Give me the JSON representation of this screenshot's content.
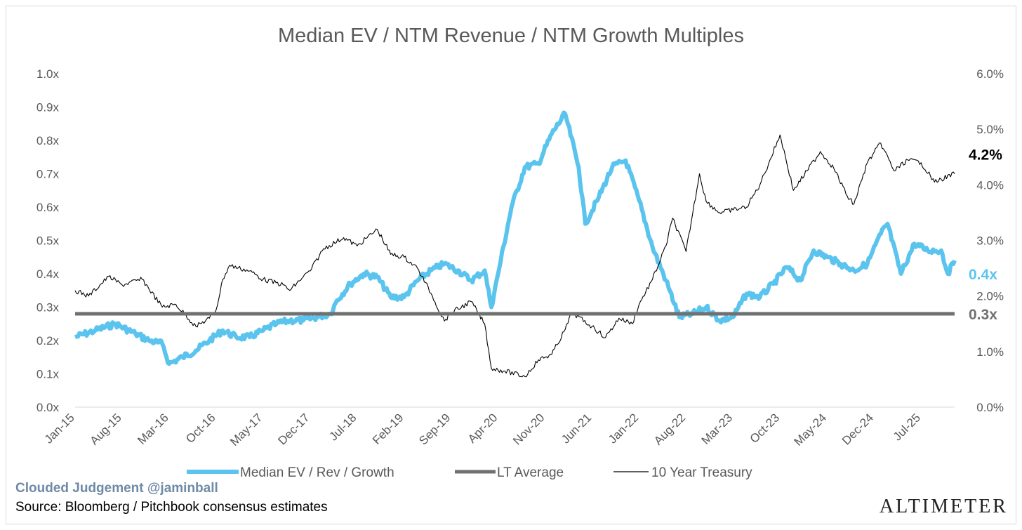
{
  "chart_data": {
    "type": "line",
    "title": "Median EV / NTM Revenue / NTM Growth Multiples",
    "x_labels": [
      "Jan-15",
      "Aug-15",
      "Mar-16",
      "Oct-16",
      "May-17",
      "Dec-17",
      "Jul-18",
      "Feb-19",
      "Sep-19",
      "Apr-20",
      "Nov-20",
      "Jun-21",
      "Jan-22",
      "Aug-22",
      "Mar-23",
      "Oct-23",
      "May-24",
      "Dec-24",
      "Jul-25"
    ],
    "x_range": [
      "Jan-15",
      "Dec-25"
    ],
    "left_axis": {
      "ticks": [
        "0.0x",
        "0.1x",
        "0.2x",
        "0.3x",
        "0.4x",
        "0.5x",
        "0.6x",
        "0.7x",
        "0.8x",
        "0.9x",
        "1.0x"
      ],
      "ylim": [
        0,
        1.0
      ]
    },
    "right_axis": {
      "ticks": [
        "0.0%",
        "1.0%",
        "2.0%",
        "3.0%",
        "4.0%",
        "5.0%",
        "6.0%"
      ],
      "ylim": [
        0,
        6.0
      ]
    },
    "series": [
      {
        "name": "Median EV / Rev / Growth",
        "axis": "left",
        "color": "#5bc4ee",
        "points": [
          [
            "Jan-15",
            0.21
          ],
          [
            "Apr-15",
            0.23
          ],
          [
            "Jul-15",
            0.25
          ],
          [
            "Oct-15",
            0.22
          ],
          [
            "Dec-15",
            0.2
          ],
          [
            "Feb-16",
            0.19
          ],
          [
            "Mar-16",
            0.13
          ],
          [
            "May-16",
            0.15
          ],
          [
            "Jul-16",
            0.17
          ],
          [
            "Sep-16",
            0.2
          ],
          [
            "Nov-16",
            0.23
          ],
          [
            "Jan-17",
            0.21
          ],
          [
            "Mar-17",
            0.21
          ],
          [
            "May-17",
            0.23
          ],
          [
            "Jul-17",
            0.25
          ],
          [
            "Sep-17",
            0.26
          ],
          [
            "Nov-17",
            0.26
          ],
          [
            "Jan-18",
            0.27
          ],
          [
            "Mar-18",
            0.28
          ],
          [
            "Apr-18",
            0.32
          ],
          [
            "Jun-18",
            0.37
          ],
          [
            "Aug-18",
            0.4
          ],
          [
            "Oct-18",
            0.39
          ],
          [
            "Dec-18",
            0.33
          ],
          [
            "Feb-19",
            0.33
          ],
          [
            "Apr-19",
            0.38
          ],
          [
            "Jun-19",
            0.41
          ],
          [
            "Aug-19",
            0.43
          ],
          [
            "Oct-19",
            0.41
          ],
          [
            "Dec-19",
            0.38
          ],
          [
            "Feb-20",
            0.41
          ],
          [
            "Mar-20",
            0.3
          ],
          [
            "Apr-20",
            0.4
          ],
          [
            "Jun-20",
            0.6
          ],
          [
            "Aug-20",
            0.72
          ],
          [
            "Oct-20",
            0.73
          ],
          [
            "Dec-20",
            0.82
          ],
          [
            "Feb-21",
            0.88
          ],
          [
            "Apr-21",
            0.72
          ],
          [
            "May-21",
            0.55
          ],
          [
            "Jul-21",
            0.63
          ],
          [
            "Sep-21",
            0.72
          ],
          [
            "Nov-21",
            0.74
          ],
          [
            "Jan-22",
            0.62
          ],
          [
            "Mar-22",
            0.48
          ],
          [
            "May-22",
            0.38
          ],
          [
            "Jul-22",
            0.27
          ],
          [
            "Sep-22",
            0.28
          ],
          [
            "Nov-22",
            0.3
          ],
          [
            "Jan-23",
            0.26
          ],
          [
            "Mar-23",
            0.27
          ],
          [
            "May-23",
            0.34
          ],
          [
            "Jul-23",
            0.33
          ],
          [
            "Sep-23",
            0.37
          ],
          [
            "Nov-23",
            0.42
          ],
          [
            "Jan-24",
            0.38
          ],
          [
            "Mar-24",
            0.47
          ],
          [
            "May-24",
            0.45
          ],
          [
            "Jul-24",
            0.43
          ],
          [
            "Sep-24",
            0.41
          ],
          [
            "Nov-24",
            0.43
          ],
          [
            "Jan-25",
            0.52
          ],
          [
            "Feb-25",
            0.55
          ],
          [
            "Apr-25",
            0.4
          ],
          [
            "Jun-25",
            0.49
          ],
          [
            "Aug-25",
            0.47
          ],
          [
            "Oct-25",
            0.47
          ],
          [
            "Nov-25",
            0.4
          ],
          [
            "Dec-25",
            0.44
          ]
        ]
      },
      {
        "name": "LT Average",
        "axis": "left",
        "color": "#707070",
        "points": [
          [
            "Jan-15",
            0.28
          ],
          [
            "Dec-25",
            0.28
          ]
        ]
      },
      {
        "name": "10 Year Treasury",
        "axis": "right",
        "color": "#000000",
        "points": [
          [
            "Jan-15",
            2.1
          ],
          [
            "Mar-15",
            2.0
          ],
          [
            "Jun-15",
            2.35
          ],
          [
            "Aug-15",
            2.2
          ],
          [
            "Nov-15",
            2.3
          ],
          [
            "Feb-16",
            1.8
          ],
          [
            "Apr-16",
            1.85
          ],
          [
            "Jul-16",
            1.45
          ],
          [
            "Sep-16",
            1.6
          ],
          [
            "Oct-16",
            1.75
          ],
          [
            "Nov-16",
            2.3
          ],
          [
            "Dec-16",
            2.55
          ],
          [
            "Mar-17",
            2.45
          ],
          [
            "May-17",
            2.3
          ],
          [
            "Aug-17",
            2.2
          ],
          [
            "Sep-17",
            2.1
          ],
          [
            "Nov-17",
            2.35
          ],
          [
            "Dec-17",
            2.45
          ],
          [
            "Feb-18",
            2.85
          ],
          [
            "May-18",
            3.05
          ],
          [
            "Jul-18",
            2.9
          ],
          [
            "Oct-18",
            3.2
          ],
          [
            "Dec-18",
            2.75
          ],
          [
            "Feb-19",
            2.7
          ],
          [
            "Apr-19",
            2.5
          ],
          [
            "Jun-19",
            2.05
          ],
          [
            "Aug-19",
            1.55
          ],
          [
            "Sep-19",
            1.7
          ],
          [
            "Dec-19",
            1.9
          ],
          [
            "Feb-20",
            1.5
          ],
          [
            "Mar-20",
            0.7
          ],
          [
            "May-20",
            0.65
          ],
          [
            "Aug-20",
            0.55
          ],
          [
            "Oct-20",
            0.85
          ],
          [
            "Dec-20",
            0.95
          ],
          [
            "Feb-21",
            1.4
          ],
          [
            "Mar-21",
            1.7
          ],
          [
            "Jun-21",
            1.45
          ],
          [
            "Aug-21",
            1.25
          ],
          [
            "Oct-21",
            1.6
          ],
          [
            "Dec-21",
            1.5
          ],
          [
            "Jan-22",
            1.85
          ],
          [
            "Mar-22",
            2.3
          ],
          [
            "May-22",
            2.9
          ],
          [
            "Jun-22",
            3.4
          ],
          [
            "Aug-22",
            2.8
          ],
          [
            "Oct-22",
            4.2
          ],
          [
            "Nov-22",
            3.7
          ],
          [
            "Jan-23",
            3.5
          ],
          [
            "Mar-23",
            3.55
          ],
          [
            "May-23",
            3.6
          ],
          [
            "Jul-23",
            4.0
          ],
          [
            "Oct-23",
            4.9
          ],
          [
            "Dec-23",
            3.9
          ],
          [
            "Feb-24",
            4.25
          ],
          [
            "Apr-24",
            4.6
          ],
          [
            "Jun-24",
            4.3
          ],
          [
            "Aug-24",
            3.8
          ],
          [
            "Sep-24",
            3.65
          ],
          [
            "Nov-24",
            4.4
          ],
          [
            "Jan-25",
            4.75
          ],
          [
            "Mar-25",
            4.25
          ],
          [
            "May-25",
            4.45
          ],
          [
            "Jul-25",
            4.4
          ],
          [
            "Sep-25",
            4.05
          ],
          [
            "Oct-25",
            4.1
          ],
          [
            "Dec-25",
            4.2
          ]
        ]
      }
    ],
    "end_labels": [
      {
        "text": "4.2%",
        "axis": "right",
        "value": 4.2,
        "color": "#000000"
      },
      {
        "text": "0.4x",
        "axis": "left",
        "value": 0.4,
        "color": "#5bc4ee"
      },
      {
        "text": "0.3x",
        "axis": "left",
        "value": 0.28,
        "color": "#707070"
      }
    ],
    "legend": {
      "placement": "bottom"
    },
    "grid": false
  },
  "footer": {
    "brand": "Clouded Judgement @jaminball",
    "source": "Source: Bloomberg / Pitchbook consensus estimates",
    "logo": "ALTIMETER"
  }
}
